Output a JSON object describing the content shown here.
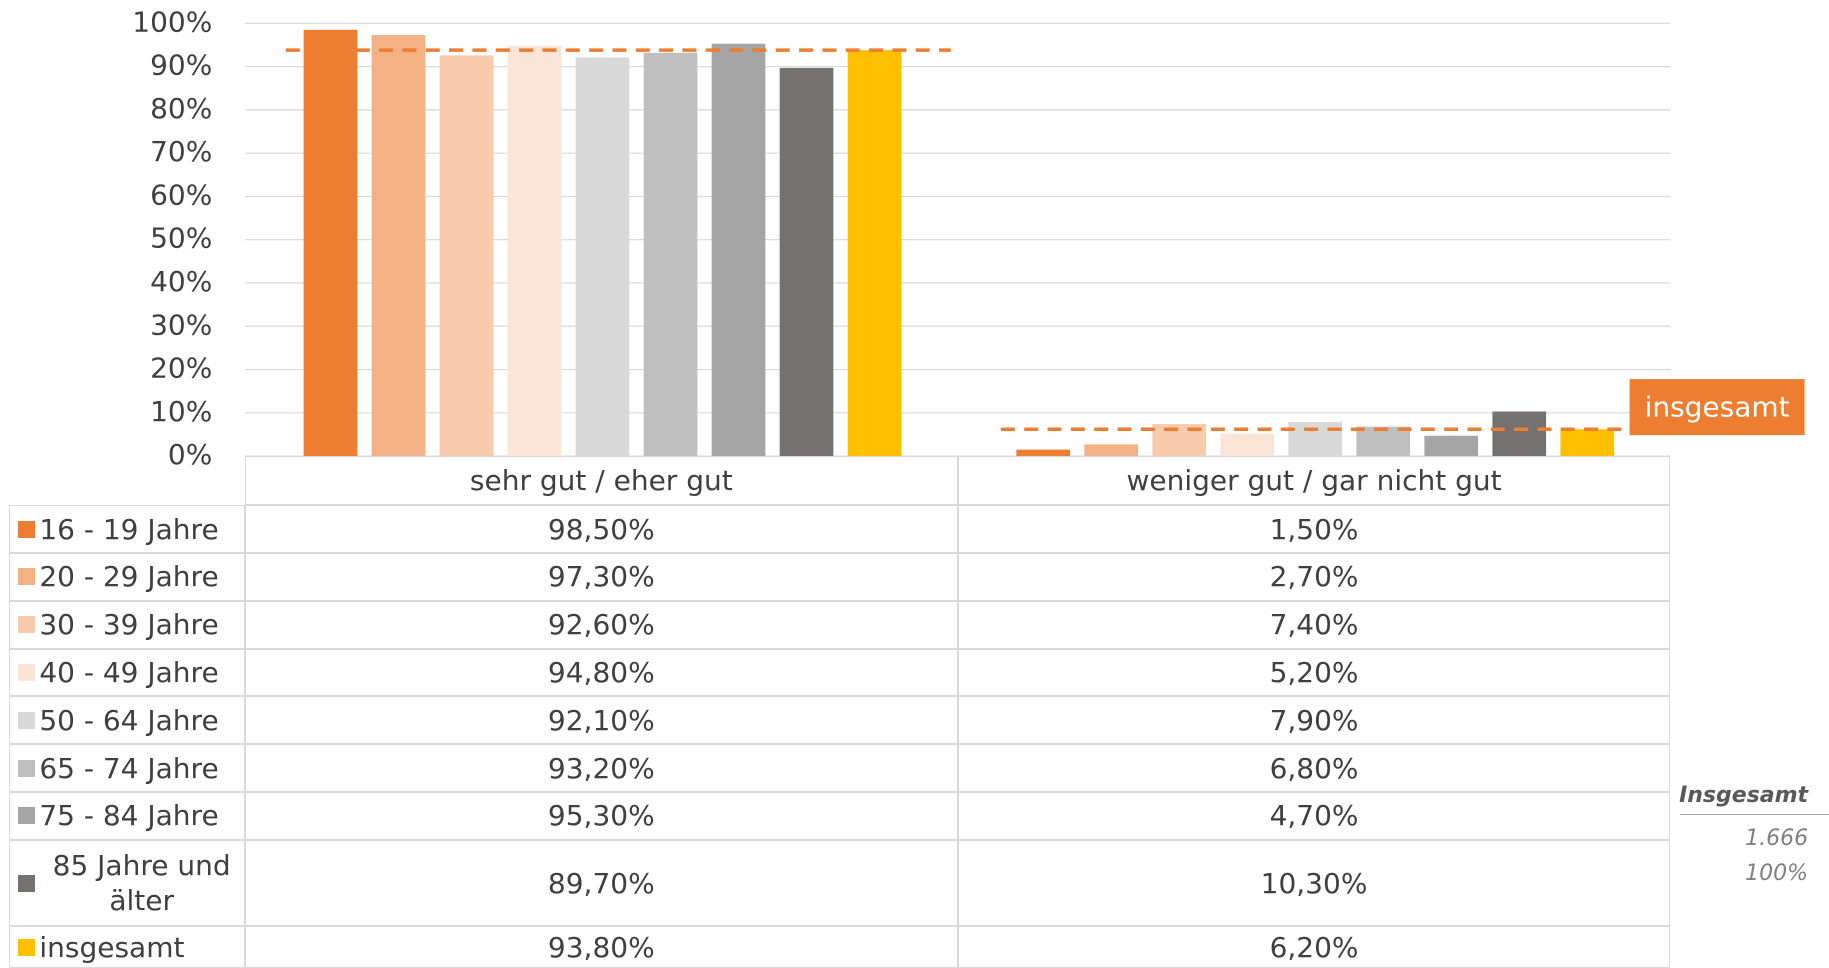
{
  "chart_data": {
    "type": "bar",
    "categories": [
      "sehr gut / eher gut",
      "weniger gut / gar nicht gut"
    ],
    "series": [
      {
        "name": "16 - 19 Jahre",
        "color": "#ed7d31",
        "values": [
          98.5,
          1.5
        ],
        "value_labels": [
          "98,50%",
          "1,50%"
        ]
      },
      {
        "name": "20 - 29 Jahre",
        "color": "#f4b183",
        "values": [
          97.3,
          2.7
        ],
        "value_labels": [
          "97,30%",
          "2,70%"
        ]
      },
      {
        "name": "30 - 39 Jahre",
        "color": "#f8cbad",
        "values": [
          92.6,
          7.4
        ],
        "value_labels": [
          "92,60%",
          "7,40%"
        ]
      },
      {
        "name": "40 - 49 Jahre",
        "color": "#fbe5d6",
        "values": [
          94.8,
          5.2
        ],
        "value_labels": [
          "94,80%",
          "5,20%"
        ]
      },
      {
        "name": "50 - 64 Jahre",
        "color": "#d9d9d9",
        "values": [
          92.1,
          7.9
        ],
        "value_labels": [
          "92,10%",
          "7,90%"
        ]
      },
      {
        "name": "65 - 74 Jahre",
        "color": "#bfbfbf",
        "values": [
          93.2,
          6.8
        ],
        "value_labels": [
          "93,20%",
          "6,80%"
        ]
      },
      {
        "name": "75 - 84 Jahre",
        "color": "#a5a5a5",
        "values": [
          95.3,
          4.7
        ],
        "value_labels": [
          "95,30%",
          "4,70%"
        ]
      },
      {
        "name": "85 Jahre und älter",
        "color": "#767171",
        "values": [
          89.7,
          10.3
        ],
        "value_labels": [
          "89,70%",
          "10,30%"
        ]
      },
      {
        "name": "insgesamt",
        "color": "#ffc000",
        "values": [
          93.8,
          6.2
        ],
        "value_labels": [
          "93,80%",
          "6,20%"
        ]
      }
    ],
    "ylim": [
      0,
      100
    ],
    "yticks": [
      {
        "value": 0,
        "label": "0%"
      },
      {
        "value": 10,
        "label": "10%"
      },
      {
        "value": 20,
        "label": "20%"
      },
      {
        "value": 30,
        "label": "30%"
      },
      {
        "value": 40,
        "label": "40%"
      },
      {
        "value": 50,
        "label": "50%"
      },
      {
        "value": 60,
        "label": "60%"
      },
      {
        "value": 70,
        "label": "70%"
      },
      {
        "value": 80,
        "label": "80%"
      },
      {
        "value": 90,
        "label": "90%"
      },
      {
        "value": 100,
        "label": "100%"
      }
    ],
    "grid": true,
    "reference_line_color": "#ed7d31",
    "annotation": "insgesamt",
    "side_note": {
      "title": "Insgesamt",
      "n": "1.666",
      "share": "100%"
    }
  }
}
